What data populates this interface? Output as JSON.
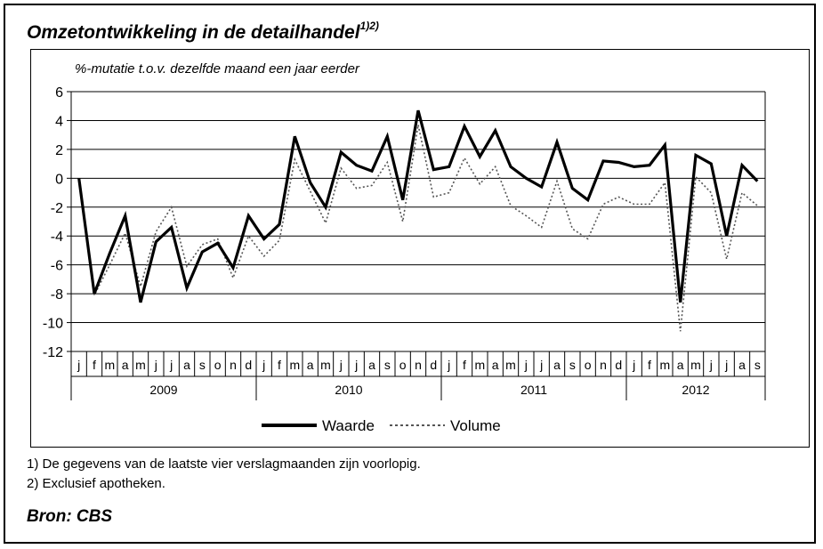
{
  "title": "Omzetontwikkeling in de detailhandel",
  "title_note": "1)2)",
  "footnotes": [
    "1) De gegevens van de laatste vier verslagmaanden zijn voorlopig.",
    "2) Exclusief apotheken."
  ],
  "source_label": "Bron",
  "source_value": ": CBS",
  "chart_data": {
    "type": "line",
    "ylabel": "%-mutatie  t.o.v. dezelfde maand een jaar eerder",
    "ylim": [
      -12,
      6
    ],
    "yticks": [
      6,
      4,
      2,
      0,
      -2,
      -4,
      -6,
      -8,
      -10,
      -12
    ],
    "grid": true,
    "legend_position": "bottom-center",
    "month_labels": [
      "j",
      "f",
      "m",
      "a",
      "m",
      "j",
      "j",
      "a",
      "s",
      "o",
      "n",
      "d",
      "j",
      "f",
      "m",
      "a",
      "m",
      "j",
      "j",
      "a",
      "s",
      "o",
      "n",
      "d",
      "j",
      "f",
      "m",
      "a",
      "m",
      "j",
      "j",
      "a",
      "s",
      "o",
      "n",
      "d",
      "j",
      "f",
      "m",
      "a",
      "m",
      "j",
      "j",
      "a",
      "s"
    ],
    "year_labels": [
      "2009",
      "2010",
      "2011",
      "2012"
    ],
    "series": [
      {
        "name": "Waarde",
        "style": "solid",
        "color": "#000000",
        "values": [
          0.0,
          -8.0,
          -5.2,
          -2.6,
          -8.6,
          -4.4,
          -3.4,
          -7.6,
          -5.1,
          -4.5,
          -6.2,
          -2.6,
          -4.2,
          -3.2,
          2.9,
          -0.3,
          -2.0,
          1.8,
          0.9,
          0.5,
          2.9,
          -1.5,
          4.7,
          0.6,
          0.8,
          3.6,
          1.5,
          3.3,
          0.8,
          0.0,
          -0.6,
          2.5,
          -0.7,
          -1.5,
          1.2,
          1.1,
          0.8,
          0.9,
          2.3,
          -8.6,
          1.6,
          1.0,
          -4.0,
          0.9,
          -0.2
        ]
      },
      {
        "name": "Volume",
        "style": "dotted",
        "color": "#555555",
        "values": [
          0.0,
          -8.1,
          -6.0,
          -3.8,
          -7.5,
          -3.7,
          -2.0,
          -6.1,
          -4.6,
          -4.2,
          -6.9,
          -4.0,
          -5.4,
          -4.3,
          1.3,
          -0.9,
          -3.1,
          0.7,
          -0.7,
          -0.5,
          1.1,
          -3.0,
          3.7,
          -1.3,
          -1.0,
          1.4,
          -0.4,
          0.8,
          -1.9,
          -2.6,
          -3.4,
          -0.2,
          -3.5,
          -4.2,
          -1.8,
          -1.3,
          -1.8,
          -1.8,
          -0.3,
          -10.6,
          0.1,
          -1.0,
          -5.6,
          -1.0,
          -1.9
        ]
      }
    ]
  }
}
